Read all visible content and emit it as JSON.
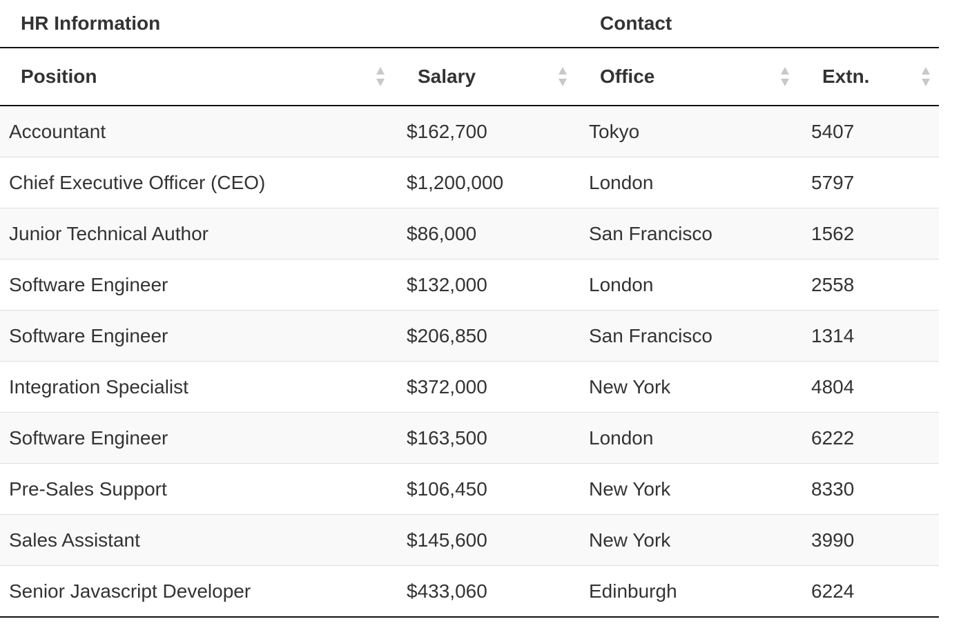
{
  "table": {
    "group_headers": {
      "hr_information": "HR Information",
      "contact": "Contact"
    },
    "columns": [
      {
        "key": "position",
        "label": "Position"
      },
      {
        "key": "salary",
        "label": "Salary"
      },
      {
        "key": "office",
        "label": "Office"
      },
      {
        "key": "extn",
        "label": "Extn."
      }
    ],
    "sort_icon": "sort-both-icon",
    "colors": {
      "text": "#333333",
      "header_border": "#111111",
      "row_border": "#dddddd",
      "stripe": "#f9f9f9",
      "sort_icon": "#c8c8c8"
    },
    "rows": [
      {
        "position": "Accountant",
        "salary": "$162,700",
        "office": "Tokyo",
        "extn": "5407"
      },
      {
        "position": "Chief Executive Officer (CEO)",
        "salary": "$1,200,000",
        "office": "London",
        "extn": "5797"
      },
      {
        "position": "Junior Technical Author",
        "salary": "$86,000",
        "office": "San Francisco",
        "extn": "1562"
      },
      {
        "position": "Software Engineer",
        "salary": "$132,000",
        "office": "London",
        "extn": "2558"
      },
      {
        "position": "Software Engineer",
        "salary": "$206,850",
        "office": "San Francisco",
        "extn": "1314"
      },
      {
        "position": "Integration Specialist",
        "salary": "$372,000",
        "office": "New York",
        "extn": "4804"
      },
      {
        "position": "Software Engineer",
        "salary": "$163,500",
        "office": "London",
        "extn": "6222"
      },
      {
        "position": "Pre-Sales Support",
        "salary": "$106,450",
        "office": "New York",
        "extn": "8330"
      },
      {
        "position": "Sales Assistant",
        "salary": "$145,600",
        "office": "New York",
        "extn": "3990"
      },
      {
        "position": "Senior Javascript Developer",
        "salary": "$433,060",
        "office": "Edinburgh",
        "extn": "6224"
      }
    ]
  }
}
